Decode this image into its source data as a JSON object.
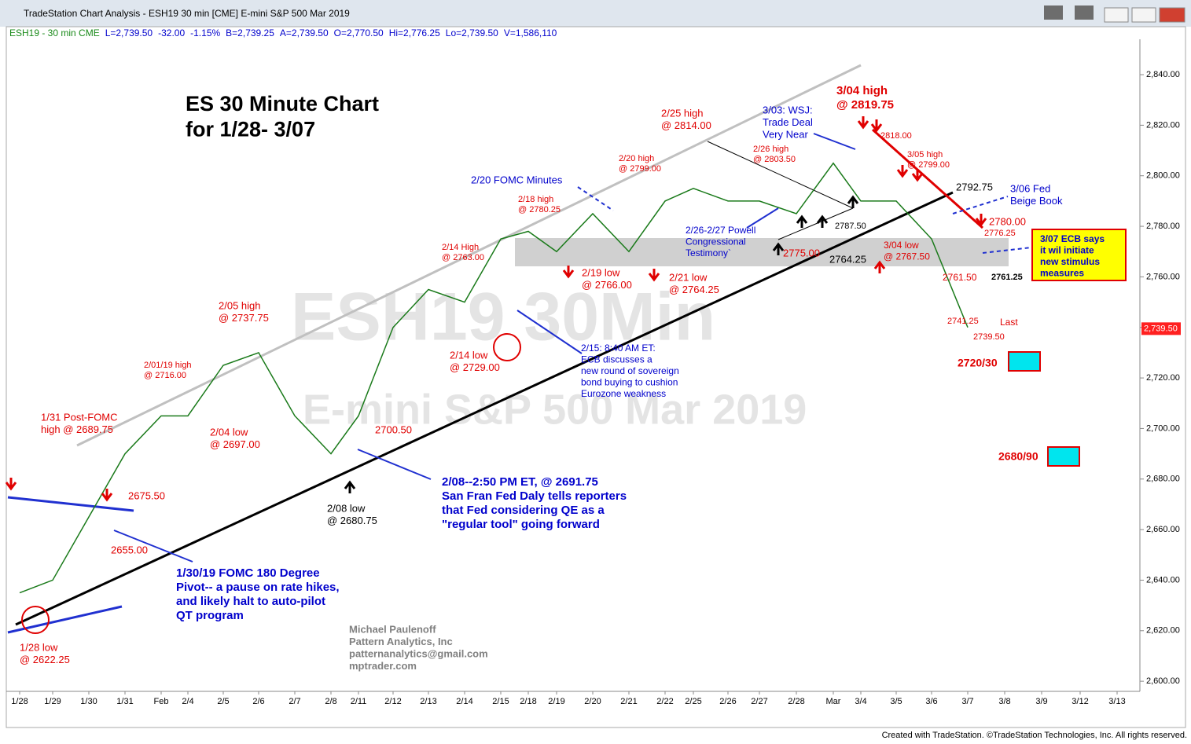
{
  "window": {
    "title": "TradeStation Chart Analysis - ESH19 30 min [CME] E-mini S&P 500 Mar 2019",
    "info": [
      "ESH19 - 30 min  CME",
      "L=2,739.50",
      "-32.00",
      "-1.15%",
      "B=2,739.25",
      "A=2,739.50",
      "O=2,770.50",
      "Hi=2,776.25",
      "Lo=2,739.50",
      "V=1,586,110"
    ],
    "footer": "Created with TradeStation. ©TradeStation Technologies, Inc. All rights reserved.",
    "watermark": [
      "ESH19 30Min",
      "E-mini S&P 500 Mar 2019"
    ]
  },
  "chart_data": {
    "type": "line",
    "categories": [
      "1/28",
      "1/29",
      "1/30",
      "1/31",
      "Feb",
      "2/4",
      "2/5",
      "2/6",
      "2/7",
      "2/8",
      "2/11",
      "2/12",
      "2/13",
      "2/14",
      "2/15",
      "2/18",
      "2/19",
      "2/20",
      "2/21",
      "2/22",
      "2/25",
      "2/26",
      "2/27",
      "2/28",
      "Mar",
      "3/4",
      "3/5",
      "3/6",
      "3/7",
      "3/8",
      "3/9",
      "3/12",
      "3/13"
    ],
    "series": [
      {
        "name": "ESH19",
        "color": "#1a7a1a",
        "values": [
          2635,
          2640,
          2665,
          2690,
          2705,
          2705,
          2725,
          2730,
          2705,
          2690,
          2705,
          2740,
          2755,
          2750,
          2775,
          2778,
          2770,
          2785,
          2770,
          2790,
          2795,
          2790,
          2790,
          2785,
          2805,
          2790,
          2790,
          2775,
          2740,
          null,
          null,
          null,
          null
        ]
      }
    ],
    "ylim": [
      2596,
      2854
    ],
    "yticks": [
      {
        "value": 2600,
        "label": "2,600.00"
      },
      {
        "value": 2620,
        "label": "2,620.00"
      },
      {
        "value": 2640,
        "label": "2,640.00"
      },
      {
        "value": 2660,
        "label": "2,660.00"
      },
      {
        "value": 2680,
        "label": "2,680.00"
      },
      {
        "value": 2700,
        "label": "2,700.00"
      },
      {
        "value": 2720,
        "label": "2,720.00"
      },
      {
        "value": 2740,
        "label": "2,740.00"
      },
      {
        "value": 2760,
        "label": "2,760.00"
      },
      {
        "value": 2780,
        "label": "2,780.00"
      },
      {
        "value": 2800,
        "label": "2,800.00"
      },
      {
        "value": 2820,
        "label": "2,820.00"
      },
      {
        "value": 2840,
        "label": "2,840.00"
      }
    ],
    "last": {
      "value": 2739.5,
      "label": "2,739.50"
    },
    "annotations": [
      {
        "lines": [
          "ES 30 Minute Chart",
          "for 1/28- 3/07"
        ],
        "color": "#000000"
      },
      {
        "lines": [
          "1/28 low",
          "@ 2622.25"
        ],
        "color": "#e00000"
      },
      {
        "lines": [
          "1/31 Post-FOMC",
          "high @ 2689.75"
        ],
        "color": "#e00000"
      },
      {
        "lines": [
          "2655.00"
        ],
        "color": "#e00000"
      },
      {
        "lines": [
          "2675.50"
        ],
        "color": "#e00000"
      },
      {
        "lines": [
          "2/01/19 high",
          "@ 2716.00"
        ],
        "color": "#e00000"
      },
      {
        "lines": [
          "2/04 low",
          "@ 2697.00"
        ],
        "color": "#e00000"
      },
      {
        "lines": [
          "2/05 high",
          "@ 2737.75"
        ],
        "color": "#e00000"
      },
      {
        "lines": [
          "2/08 low",
          "@ 2680.75"
        ],
        "color": "#000000"
      },
      {
        "lines": [
          "2700.50"
        ],
        "color": "#e00000"
      },
      {
        "lines": [
          "2/14 High",
          "@ 2763.00"
        ],
        "color": "#e00000"
      },
      {
        "lines": [
          "2/14 low",
          "@ 2729.00"
        ],
        "color": "#e00000"
      },
      {
        "lines": [
          "2/15: 8:40 AM ET:",
          "ECB discusses a",
          "new round of sovereign",
          "bond buying to cushion",
          "Eurozone weakness"
        ],
        "color": "#0000cc"
      },
      {
        "lines": [
          "2/08--2:50 PM ET, @ 2691.75",
          "San Fran Fed Daly tells reporters",
          "that Fed considering QE as a",
          "\"regular tool\" going forward"
        ],
        "color": "#0000cc"
      },
      {
        "lines": [
          "1/30/19 FOMC 180 Degree",
          "Pivot-- a pause on rate hikes,",
          "and likely halt to auto-pilot",
          "QT program"
        ],
        "color": "#0000cc"
      },
      {
        "lines": [
          "2/20 FOMC Minutes"
        ],
        "color": "#0000cc"
      },
      {
        "lines": [
          "2/18 high",
          "@ 2780.25"
        ],
        "color": "#e00000"
      },
      {
        "lines": [
          "2/19 low",
          "@ 2766.00"
        ],
        "color": "#e00000"
      },
      {
        "lines": [
          "2/20 high",
          "@ 2799.00"
        ],
        "color": "#e00000"
      },
      {
        "lines": [
          "2/21 low",
          "@ 2764.25"
        ],
        "color": "#e00000"
      },
      {
        "lines": [
          "2/25 high",
          "@ 2814.00"
        ],
        "color": "#e00000"
      },
      {
        "lines": [
          "2/26 high",
          "@ 2803.50"
        ],
        "color": "#e00000"
      },
      {
        "lines": [
          "2/26-2/27 Powell",
          "Congressional",
          "Testimony`"
        ],
        "color": "#0000cc"
      },
      {
        "lines": [
          "2775.00"
        ],
        "color": "#e00000"
      },
      {
        "lines": [
          "2787.50"
        ],
        "color": "#000000"
      },
      {
        "lines": [
          "2764.25"
        ],
        "color": "#000000"
      },
      {
        "lines": [
          "3/03: WSJ:",
          "Trade Deal",
          "Very Near"
        ],
        "color": "#0000cc"
      },
      {
        "lines": [
          "3/04 high",
          "@ 2819.75"
        ],
        "color": "#e00000"
      },
      {
        "lines": [
          "2818.00"
        ],
        "color": "#e00000"
      },
      {
        "lines": [
          "3/05 high",
          "@ 2799.00"
        ],
        "color": "#e00000"
      },
      {
        "lines": [
          "2792.75"
        ],
        "color": "#000000"
      },
      {
        "lines": [
          "3/06 Fed",
          "Beige Book"
        ],
        "color": "#0000cc"
      },
      {
        "lines": [
          "3/04 low",
          "@ 2767.50"
        ],
        "color": "#e00000"
      },
      {
        "lines": [
          "2780.00"
        ],
        "color": "#e00000"
      },
      {
        "lines": [
          "2776.25"
        ],
        "color": "#e00000"
      },
      {
        "lines": [
          "2761.50"
        ],
        "color": "#e00000"
      },
      {
        "lines": [
          "2761.25"
        ],
        "color": "#000000"
      },
      {
        "lines": [
          "2741.25"
        ],
        "color": "#e00000"
      },
      {
        "lines": [
          "Last"
        ],
        "color": "#e00000"
      },
      {
        "lines": [
          "2739.50"
        ],
        "color": "#e00000"
      },
      {
        "lines": [
          "2720/30"
        ],
        "color": "#e00000"
      },
      {
        "lines": [
          "2680/90"
        ],
        "color": "#e00000"
      },
      {
        "lines": [
          "3/07 ECB says",
          "it wil initiate",
          "new stimulus",
          "measures"
        ],
        "color": "#0000cc"
      },
      {
        "lines": [
          "Michael Paulenoff",
          "Pattern Analytics, Inc",
          "patternanalytics@gmail.com",
          "mptrader.com"
        ],
        "color": "#808080"
      }
    ]
  }
}
